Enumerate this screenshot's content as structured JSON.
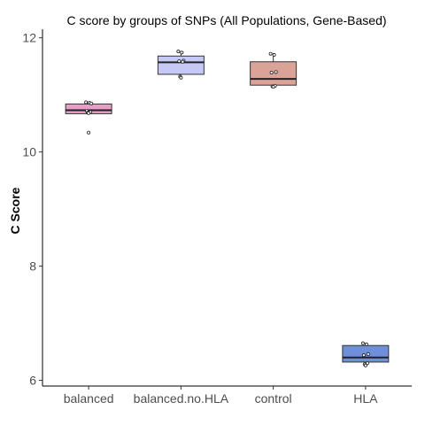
{
  "chart_data": {
    "type": "boxplot",
    "title": "C score by groups of SNPs (All Populations, Gene-Based)",
    "xlabel": "",
    "ylabel": "C Score",
    "ylim": [
      5.9,
      12.15
    ],
    "yticks": [
      6,
      8,
      10,
      12
    ],
    "grid": false,
    "legend": "none",
    "categories": [
      "balanced",
      "balanced.no.HLA",
      "control",
      "HLA"
    ],
    "colors": [
      "#e69fc6",
      "#c6c9f5",
      "#dba297",
      "#6f8fd9"
    ],
    "boxes": [
      {
        "category": "balanced",
        "q1": 10.67,
        "median": 10.73,
        "q3": 10.84,
        "whisker_low": 10.67,
        "whisker_high": 10.87,
        "points": [
          10.87,
          10.86,
          10.85,
          10.72,
          10.7,
          10.69,
          10.68,
          10.34
        ]
      },
      {
        "category": "balanced.no.HLA",
        "q1": 11.36,
        "median": 11.57,
        "q3": 11.68,
        "whisker_low": 11.3,
        "whisker_high": 11.77,
        "points": [
          11.76,
          11.74,
          11.6,
          11.59,
          11.58,
          11.32,
          11.3
        ]
      },
      {
        "category": "control",
        "q1": 11.17,
        "median": 11.28,
        "q3": 11.58,
        "whisker_low": 11.14,
        "whisker_high": 11.73,
        "points": [
          11.72,
          11.7,
          11.4,
          11.39,
          11.16,
          11.15,
          11.14
        ]
      },
      {
        "category": "HLA",
        "q1": 6.32,
        "median": 6.4,
        "q3": 6.61,
        "whisker_low": 6.25,
        "whisker_high": 6.66,
        "points": [
          6.65,
          6.63,
          6.46,
          6.44,
          6.3,
          6.28,
          6.26
        ]
      }
    ]
  }
}
